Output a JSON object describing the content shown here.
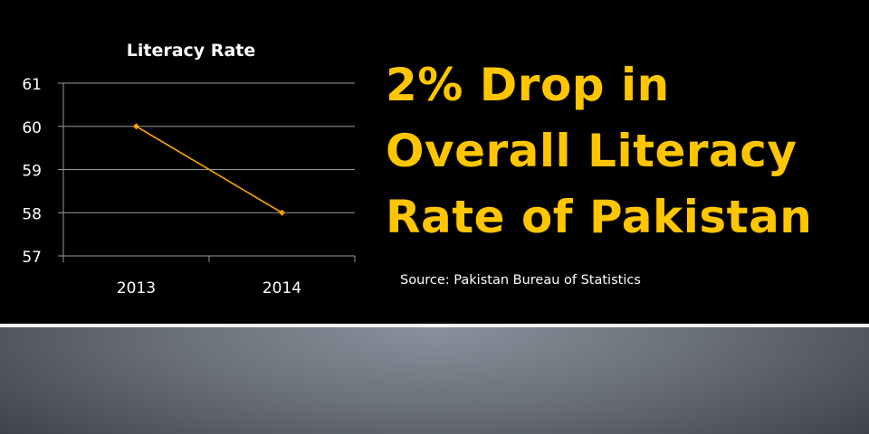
{
  "headline": {
    "lines": [
      "2% Drop in",
      "Overall Literacy",
      "Rate of Pakistan"
    ]
  },
  "source": "Source: Pakistan Bureau of Statistics",
  "colors": {
    "headline": "#ffc600",
    "series_line": "#f5a300",
    "background": "#000000"
  },
  "chart_data": {
    "type": "line",
    "title": "Literacy Rate",
    "xlabel": "",
    "ylabel": "",
    "categories": [
      "2013",
      "2014"
    ],
    "series": [
      {
        "values": [
          60,
          58
        ]
      }
    ],
    "ylim": [
      57,
      61
    ],
    "yticks": [
      "57",
      "58",
      "59",
      "60",
      "61"
    ],
    "grid": true,
    "legend": "none"
  }
}
